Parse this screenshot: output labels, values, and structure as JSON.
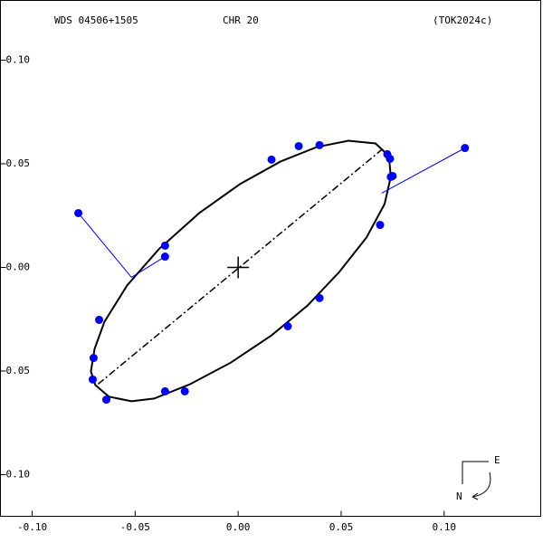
{
  "chart_data": {
    "type": "orbit",
    "title": "WDS 04506+1505",
    "subtitle": "CHR  20",
    "reference": "(TOK2024c)",
    "compass": {
      "east": "E",
      "north": "N"
    },
    "xlim": [
      -0.1154,
      0.1469
    ],
    "ylim": [
      -0.1201,
      0.1288
    ],
    "xticks": [
      {
        "value": -0.1,
        "label": "-0.10"
      },
      {
        "value": -0.05,
        "label": "-0.05"
      },
      {
        "value": 0,
        "label": "0.00"
      },
      {
        "value": 0.05,
        "label": "0.05"
      },
      {
        "value": 0.1,
        "label": "0.10"
      }
    ],
    "yticks": [
      {
        "value": -0.1,
        "label": "-0.10"
      },
      {
        "value": -0.05,
        "label": "-0.05"
      },
      {
        "value": 0,
        "label": "0.00"
      },
      {
        "value": 0.05,
        "label": "0.05"
      },
      {
        "value": 0.1,
        "label": "0.10"
      }
    ],
    "grid": false,
    "point_color": "#0000ff",
    "orbit_color": "#000000",
    "x": [
      -0.0776,
      -0.0355,
      -0.0355,
      -0.0675,
      -0.0702,
      -0.0706,
      -0.064,
      -0.0355,
      -0.0259,
      0.0241,
      0.0395,
      0.0689,
      0.0741,
      0.075,
      0.0737,
      0.0724,
      0.0395,
      0.0294,
      0.0162,
      0.1101
    ],
    "y": [
      0.0262,
      0.0105,
      0.0052,
      -0.0253,
      -0.0437,
      -0.0541,
      -0.0638,
      -0.0598,
      -0.0598,
      -0.0284,
      -0.0148,
      0.0205,
      0.0437,
      0.0441,
      0.0524,
      0.0546,
      0.059,
      0.0585,
      0.052,
      0.0576
    ],
    "fit_x": [
      -0.0518,
      null,
      -0.0518,
      null,
      null,
      null,
      null,
      null,
      null,
      null,
      null,
      null,
      null,
      null,
      null,
      null,
      null,
      null,
      null,
      0.0697
    ],
    "fit_y": [
      -0.0048,
      null,
      -0.0048,
      null,
      null,
      null,
      null,
      null,
      null,
      null,
      null,
      null,
      null,
      null,
      null,
      null,
      null,
      null,
      null,
      0.0358
    ],
    "orbit": {
      "x": [
        -0.0715,
        -0.0697,
        -0.0649,
        -0.0539,
        -0.0386,
        -0.0189,
        0.0009,
        0.0206,
        0.0382,
        0.0535,
        0.0667,
        0.0732,
        0.0741,
        0.0711,
        0.0623,
        0.0491,
        0.0338,
        0.0162,
        -0.0035,
        -0.0232,
        -0.0408,
        -0.0518,
        -0.0627,
        -0.0693
      ],
      "y": [
        -0.0502,
        -0.0393,
        -0.0262,
        -0.0087,
        0.0087,
        0.0262,
        0.0402,
        0.0511,
        0.0581,
        0.0611,
        0.0598,
        0.0537,
        0.0437,
        0.0306,
        0.0144,
        -0.0022,
        -0.0183,
        -0.0328,
        -0.0459,
        -0.0563,
        -0.0633,
        -0.0646,
        -0.0624,
        -0.0568
      ]
    },
    "line_of_nodes": {
      "x": [
        -0.068,
        0.0702
      ],
      "y": [
        -0.0563,
        0.0572
      ]
    }
  }
}
